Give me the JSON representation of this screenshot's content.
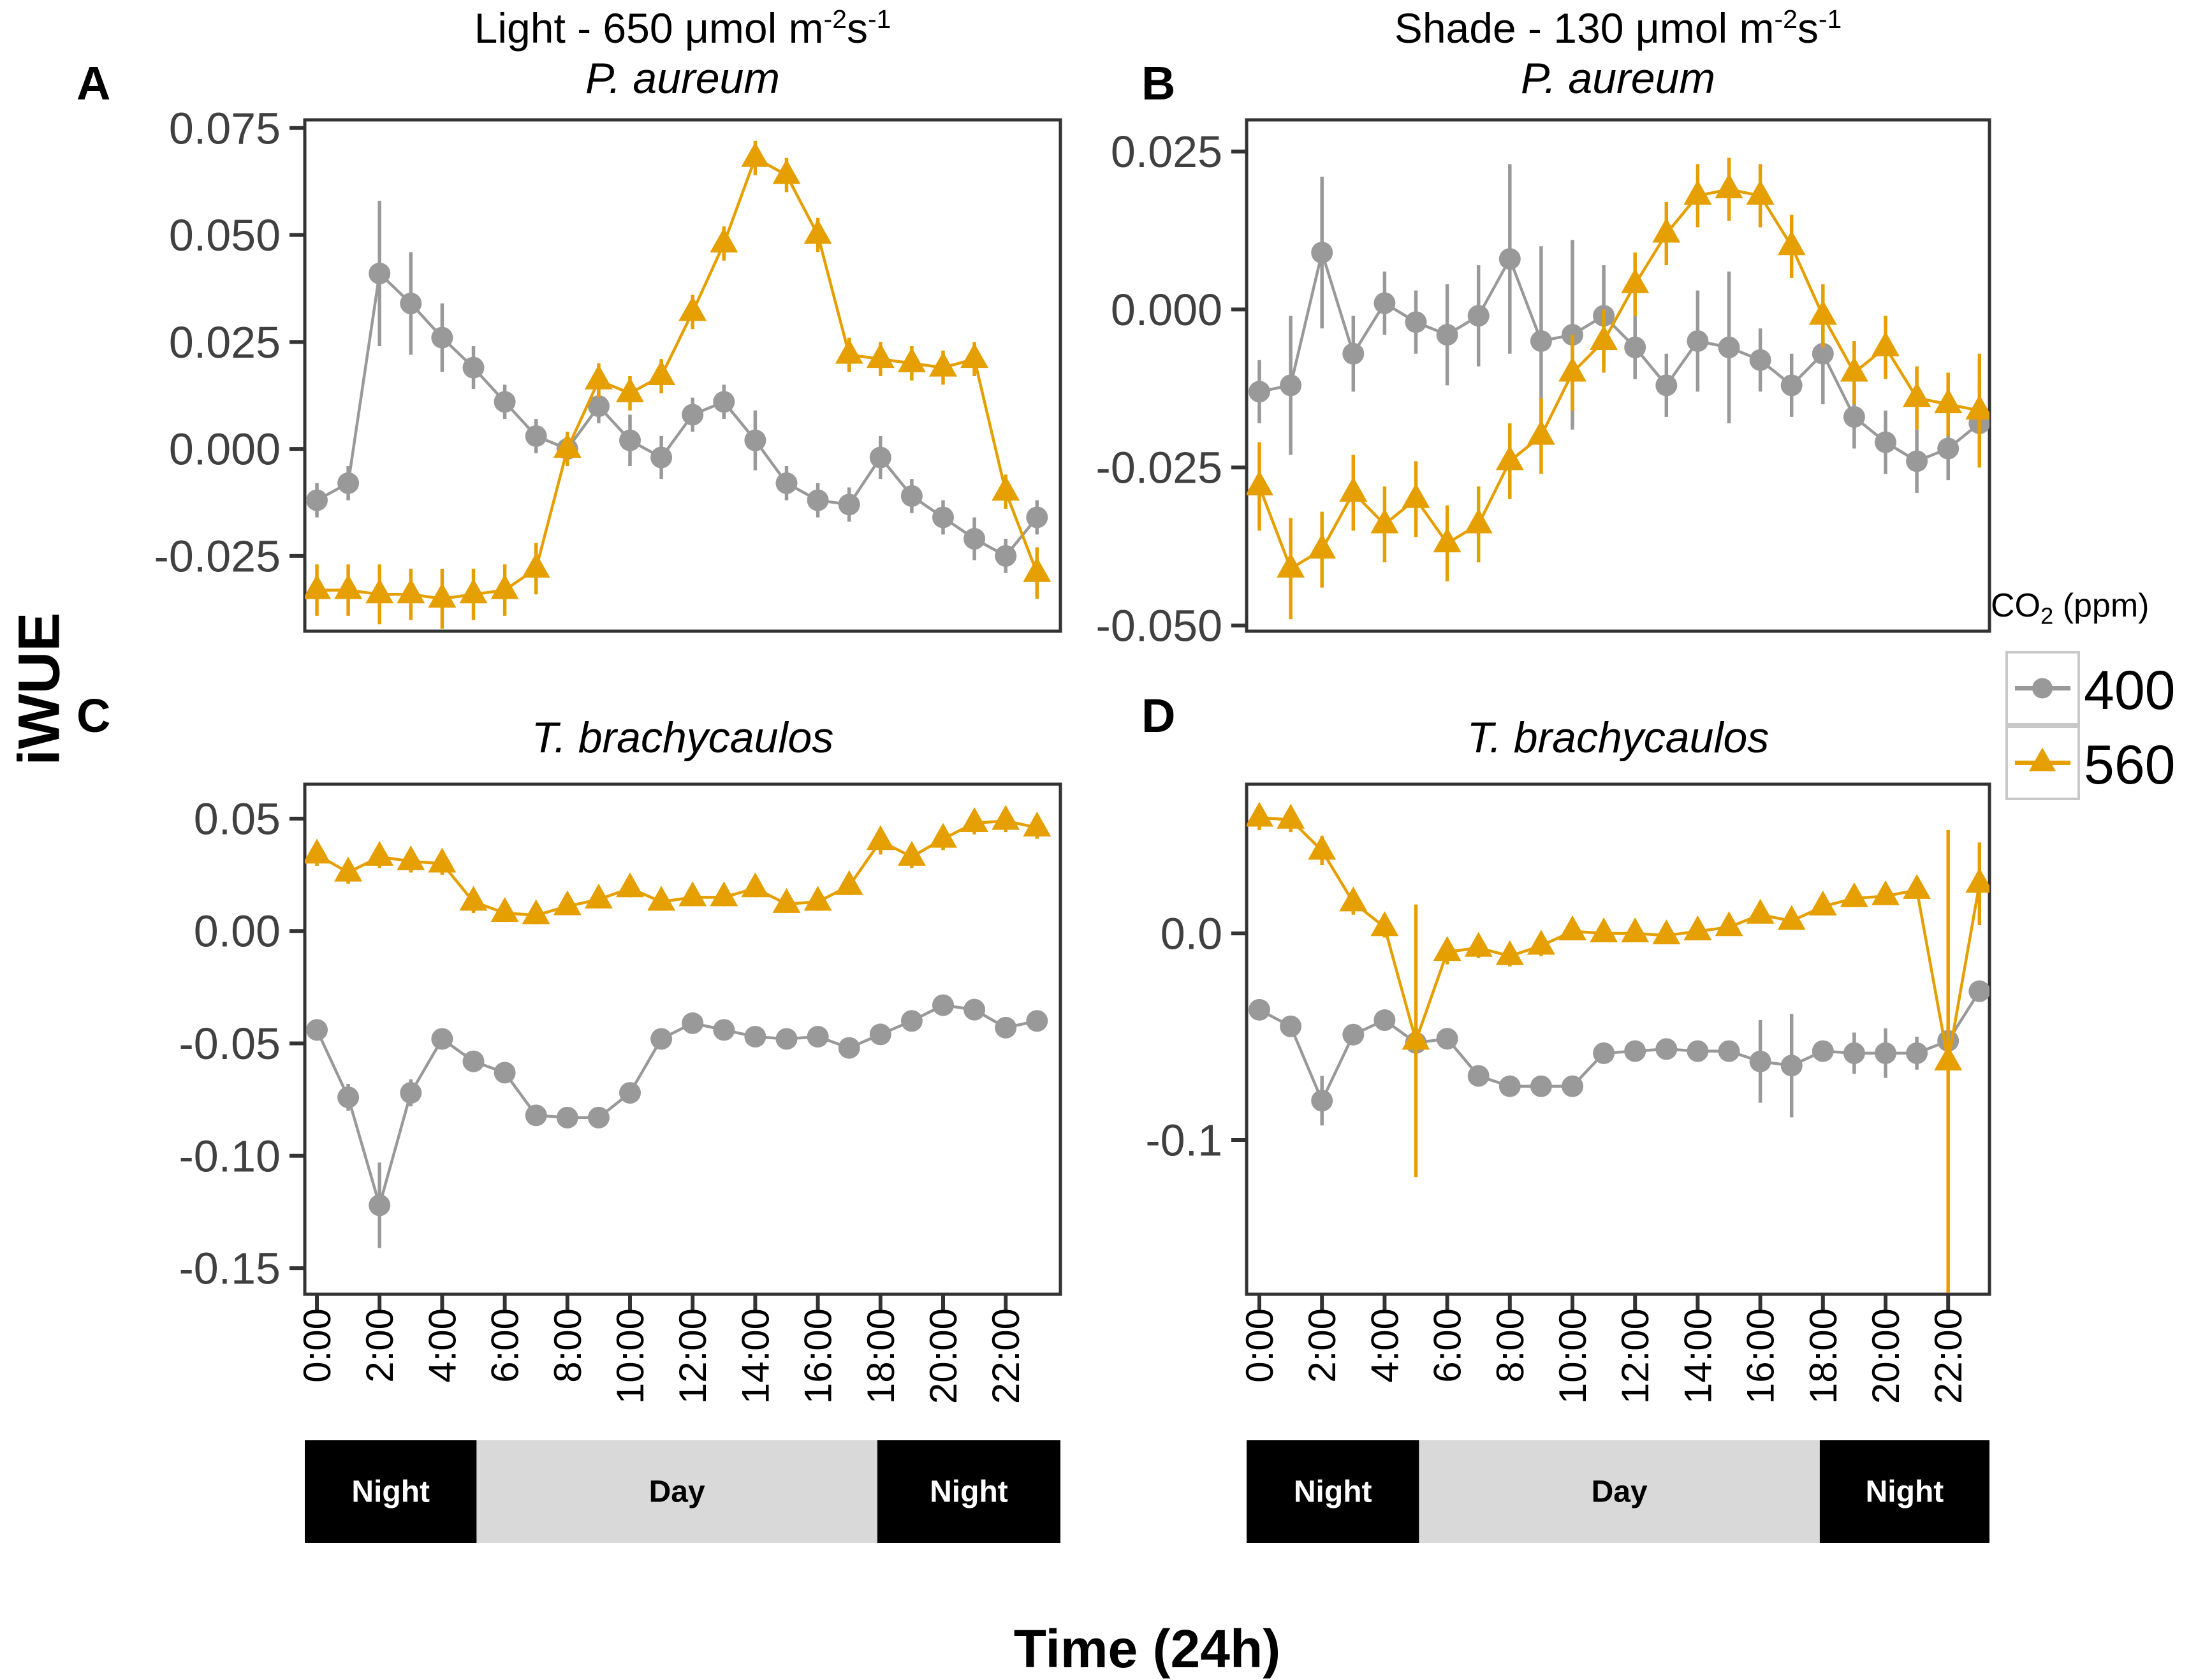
{
  "figure": {
    "y_axis_label": "iWUE",
    "x_axis_label": "Time (24h)",
    "col_titles": [
      {
        "prefix": "Light - 650 μmol m",
        "sup1": "-2",
        "mid": "s",
        "sup2": "-1"
      },
      {
        "prefix": "Shade - 130 μmol m",
        "sup1": "-2",
        "mid": "s",
        "sup2": "-1"
      }
    ],
    "legend": {
      "title_pre": "CO",
      "title_sub": "2",
      "title_post": " (ppm)",
      "items": [
        {
          "label": "400",
          "color": "#999999",
          "marker": "circle-marker"
        },
        {
          "label": "560",
          "color": "#E69F00",
          "marker": "triangle-marker"
        }
      ]
    },
    "colors": {
      "gray_series": "#999999",
      "orange_series": "#E69F00",
      "axis_line": "#333333",
      "y_tick_text": "#404040",
      "x_tick_text": "#000000",
      "night_bg": "#000000",
      "night_fg": "#ffffff",
      "day_bg": "#D9D9D9",
      "day_fg": "#000000",
      "legend_key_border": "#C8C8C8"
    }
  },
  "chart_data": {
    "type": "line",
    "x_unit": "hours",
    "x": [
      0,
      1,
      2,
      3,
      4,
      5,
      6,
      7,
      8,
      9,
      10,
      11,
      12,
      13,
      14,
      15,
      16,
      17,
      18,
      19,
      20,
      21,
      22,
      23
    ],
    "x_tick_hours": [
      0,
      2,
      4,
      6,
      8,
      10,
      12,
      14,
      16,
      18,
      20,
      22
    ],
    "x_tick_labels": [
      "0:00",
      "2:00",
      "4:00",
      "6:00",
      "8:00",
      "10:00",
      "12:00",
      "14:00",
      "16:00",
      "18:00",
      "20:00",
      "22:00"
    ],
    "legend_position": "right",
    "grid": false,
    "day_night_segments": [
      {
        "label": "Night",
        "from_hour": 0,
        "to_hour": 5.1,
        "kind": "night"
      },
      {
        "label": "Day",
        "from_hour": 5.1,
        "to_hour": 17.9,
        "kind": "day"
      },
      {
        "label": "Night",
        "from_hour": 17.9,
        "to_hour": 23.75,
        "kind": "night"
      }
    ],
    "panels": [
      {
        "id": "A",
        "letter": "A",
        "row": 0,
        "col": 0,
        "subtitle": "P. aureum",
        "ylim": [
          -0.0426,
          0.0769
        ],
        "yticks": [
          {
            "v": 0.075,
            "label": "0.075"
          },
          {
            "v": 0.05,
            "label": "0.050"
          },
          {
            "v": 0.025,
            "label": "0.025"
          },
          {
            "v": 0.0,
            "label": "0.000"
          },
          {
            "v": -0.025,
            "label": "-0.025"
          }
        ],
        "show_xticks": false,
        "series": [
          {
            "name": "400",
            "color": "#999999",
            "marker": "circle",
            "values": [
              -0.012,
              -0.008,
              0.041,
              0.034,
              0.026,
              0.019,
              0.011,
              0.003,
              0.0,
              0.01,
              0.002,
              -0.002,
              0.008,
              0.011,
              0.002,
              -0.008,
              -0.012,
              -0.013,
              -0.002,
              -0.011,
              -0.016,
              -0.021,
              -0.025,
              -0.016
            ],
            "err": [
              0.004,
              0.004,
              0.017,
              0.012,
              0.008,
              0.005,
              0.004,
              0.004,
              0.004,
              0.004,
              0.006,
              0.005,
              0.004,
              0.004,
              0.007,
              0.004,
              0.004,
              0.004,
              0.005,
              0.004,
              0.004,
              0.005,
              0.004,
              0.004
            ]
          },
          {
            "name": "560",
            "color": "#E69F00",
            "marker": "triangle",
            "values": [
              -0.033,
              -0.033,
              -0.034,
              -0.034,
              -0.035,
              -0.034,
              -0.033,
              -0.028,
              0.0,
              0.016,
              0.013,
              0.017,
              0.032,
              0.048,
              0.068,
              0.064,
              0.05,
              0.022,
              0.021,
              0.02,
              0.019,
              0.021,
              -0.01,
              -0.029
            ],
            "err": [
              0.006,
              0.006,
              0.007,
              0.006,
              0.007,
              0.006,
              0.006,
              0.006,
              0.004,
              0.004,
              0.004,
              0.004,
              0.004,
              0.004,
              0.004,
              0.004,
              0.004,
              0.004,
              0.004,
              0.004,
              0.004,
              0.004,
              0.004,
              0.006
            ]
          }
        ]
      },
      {
        "id": "B",
        "letter": "B",
        "row": 0,
        "col": 1,
        "subtitle": "P. aureum",
        "ylim": [
          -0.0509,
          0.03
        ],
        "yticks": [
          {
            "v": 0.025,
            "label": "0.025"
          },
          {
            "v": 0.0,
            "label": "0.000"
          },
          {
            "v": -0.025,
            "label": "-0.025"
          },
          {
            "v": -0.05,
            "label": "-0.050"
          }
        ],
        "show_xticks": false,
        "series": [
          {
            "name": "400",
            "color": "#999999",
            "marker": "circle",
            "values": [
              -0.013,
              -0.012,
              0.009,
              -0.007,
              0.001,
              -0.002,
              -0.004,
              -0.001,
              0.008,
              -0.005,
              -0.004,
              -0.001,
              -0.006,
              -0.012,
              -0.005,
              -0.006,
              -0.008,
              -0.012,
              -0.007,
              -0.017,
              -0.021,
              -0.024,
              -0.022,
              -0.018
            ],
            "err": [
              0.005,
              0.011,
              0.012,
              0.006,
              0.005,
              0.005,
              0.008,
              0.008,
              0.015,
              0.015,
              0.015,
              0.008,
              0.005,
              0.005,
              0.008,
              0.012,
              0.005,
              0.005,
              0.008,
              0.005,
              0.005,
              0.005,
              0.005,
              0.007
            ]
          },
          {
            "name": "560",
            "color": "#E69F00",
            "marker": "triangle",
            "values": [
              -0.028,
              -0.041,
              -0.038,
              -0.029,
              -0.034,
              -0.03,
              -0.037,
              -0.034,
              -0.024,
              -0.02,
              -0.01,
              -0.005,
              0.004,
              0.012,
              0.018,
              0.019,
              0.018,
              0.01,
              -0.001,
              -0.01,
              -0.006,
              -0.014,
              -0.015,
              -0.016
            ],
            "err": [
              0.007,
              0.008,
              0.006,
              0.006,
              0.006,
              0.006,
              0.006,
              0.006,
              0.006,
              0.006,
              0.006,
              0.005,
              0.005,
              0.005,
              0.005,
              0.005,
              0.005,
              0.005,
              0.005,
              0.005,
              0.005,
              0.005,
              0.005,
              0.009
            ]
          }
        ]
      },
      {
        "id": "C",
        "letter": "C",
        "row": 1,
        "col": 0,
        "subtitle": "T. brachycaulos",
        "ylim": [
          -0.1616,
          0.0653
        ],
        "yticks": [
          {
            "v": 0.05,
            "label": "0.05"
          },
          {
            "v": 0.0,
            "label": "0.00"
          },
          {
            "v": -0.05,
            "label": "-0.05"
          },
          {
            "v": -0.1,
            "label": "-0.10"
          },
          {
            "v": -0.15,
            "label": "-0.15"
          }
        ],
        "show_xticks": true,
        "series": [
          {
            "name": "400",
            "color": "#999999",
            "marker": "circle",
            "values": [
              -0.044,
              -0.074,
              -0.122,
              -0.072,
              -0.048,
              -0.058,
              -0.063,
              -0.082,
              -0.083,
              -0.083,
              -0.072,
              -0.048,
              -0.041,
              -0.044,
              -0.047,
              -0.048,
              -0.047,
              -0.052,
              -0.046,
              -0.04,
              -0.033,
              -0.035,
              -0.043,
              -0.04
            ],
            "err": [
              0.004,
              0.006,
              0.019,
              0.006,
              0.004,
              0.004,
              0.004,
              0.004,
              0.004,
              0.004,
              0.004,
              0.004,
              0.004,
              0.004,
              0.004,
              0.004,
              0.004,
              0.004,
              0.004,
              0.004,
              0.004,
              0.004,
              0.004,
              0.004
            ]
          },
          {
            "name": "560",
            "color": "#E69F00",
            "marker": "triangle",
            "values": [
              0.034,
              0.026,
              0.033,
              0.031,
              0.03,
              0.013,
              0.008,
              0.007,
              0.011,
              0.014,
              0.019,
              0.013,
              0.015,
              0.015,
              0.019,
              0.012,
              0.013,
              0.02,
              0.04,
              0.033,
              0.041,
              0.048,
              0.049,
              0.046
            ],
            "err": [
              0.005,
              0.005,
              0.005,
              0.005,
              0.005,
              0.005,
              0.004,
              0.004,
              0.004,
              0.004,
              0.004,
              0.004,
              0.004,
              0.004,
              0.004,
              0.004,
              0.004,
              0.004,
              0.006,
              0.005,
              0.005,
              0.005,
              0.005,
              0.005
            ]
          }
        ]
      },
      {
        "id": "D",
        "letter": "D",
        "row": 1,
        "col": 1,
        "subtitle": "T. brachycaulos",
        "ylim": [
          -0.1747,
          0.0722
        ],
        "yticks": [
          {
            "v": 0.0,
            "label": "0.0"
          },
          {
            "v": -0.1,
            "label": "-0.1"
          }
        ],
        "show_xticks": true,
        "series": [
          {
            "name": "400",
            "color": "#999999",
            "marker": "circle",
            "values": [
              -0.037,
              -0.045,
              -0.081,
              -0.049,
              -0.042,
              -0.053,
              -0.051,
              -0.069,
              -0.074,
              -0.074,
              -0.074,
              -0.058,
              -0.057,
              -0.056,
              -0.057,
              -0.057,
              -0.062,
              -0.064,
              -0.057,
              -0.058,
              -0.058,
              -0.058,
              -0.052,
              -0.028
            ],
            "err": [
              0.004,
              0.004,
              0.012,
              0.005,
              0.004,
              0.004,
              0.004,
              0.004,
              0.004,
              0.004,
              0.004,
              0.004,
              0.004,
              0.004,
              0.004,
              0.004,
              0.02,
              0.025,
              0.004,
              0.01,
              0.012,
              0.008,
              0.004,
              0.004
            ]
          },
          {
            "name": "560",
            "color": "#E69F00",
            "marker": "triangle",
            "values": [
              0.056,
              0.055,
              0.04,
              0.015,
              0.003,
              -0.052,
              -0.009,
              -0.007,
              -0.011,
              -0.006,
              0.001,
              0.0,
              0.0,
              -0.001,
              0.001,
              0.003,
              0.009,
              0.006,
              0.013,
              0.017,
              0.018,
              0.021,
              -0.062,
              0.024
            ],
            "err": [
              0.006,
              0.006,
              0.007,
              0.006,
              0.005,
              0.066,
              0.006,
              0.005,
              0.005,
              0.005,
              0.004,
              0.004,
              0.004,
              0.004,
              0.004,
              0.004,
              0.004,
              0.004,
              0.004,
              0.004,
              0.004,
              0.004,
              0.112,
              0.02
            ]
          }
        ]
      }
    ]
  }
}
